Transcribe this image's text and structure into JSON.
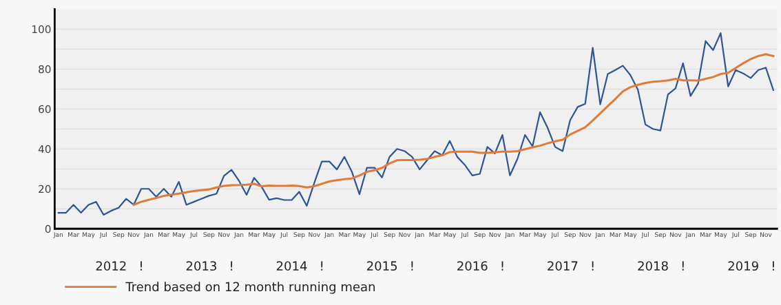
{
  "chart_data": {
    "type": "line",
    "categories": [
      "Jan",
      null,
      "Mar",
      null,
      "May",
      null,
      "Jul",
      null,
      "Sep",
      null,
      "Nov",
      null,
      "Jan",
      null,
      "Mar",
      null,
      "May",
      null,
      "Jul",
      null,
      "Sep",
      null,
      "Nov",
      null,
      "Jan",
      null,
      "Mar",
      null,
      "May",
      null,
      "Jul",
      null,
      "Sep",
      null,
      "Nov",
      null,
      "Jan",
      null,
      "Mar",
      null,
      "May",
      null,
      "Jul",
      null,
      "Sep",
      null,
      "Nov",
      null,
      "Jan",
      null,
      "Mar",
      null,
      "May",
      null,
      "Jul",
      null,
      "Sep",
      null,
      "Nov",
      null,
      "Jan",
      null,
      "Mar",
      null,
      "May",
      null,
      "Jul",
      null,
      "Sep",
      null,
      "Nov",
      null,
      "Jan",
      null,
      "Mar",
      null,
      "May",
      null,
      "Jul",
      null,
      "Sep",
      null,
      "Nov",
      null,
      "Jan",
      null,
      "Mar",
      null,
      "May",
      null,
      "Jul",
      null,
      "Sep",
      null,
      "Nov",
      null
    ],
    "series": [
      {
        "color": "#2f5597",
        "values": [
          8,
          8,
          12,
          8,
          12,
          13.5,
          7,
          9,
          10.5,
          15,
          12,
          20,
          20,
          16,
          20,
          16,
          23.5,
          12,
          13.5,
          15,
          16.5,
          17.5,
          26.5,
          29.5,
          24,
          17,
          25.5,
          21,
          14.5,
          15.3,
          14.4,
          14.4,
          18.5,
          11.5,
          23,
          33.7,
          33.7,
          29.7,
          36,
          28.5,
          17.3,
          30.6,
          30.6,
          25.7,
          36,
          40,
          38.9,
          36,
          29.7,
          34.4,
          38.9,
          36.8,
          44,
          36,
          32,
          26.7,
          27.5,
          41,
          37.7,
          47,
          26.7,
          35,
          47,
          41.3,
          58.4,
          50.6,
          41,
          38.9,
          54.4,
          61,
          62.6,
          90.7,
          62.3,
          77.5,
          79.5,
          81.7,
          77,
          69.7,
          52.2,
          50,
          49.2,
          67.3,
          70.3,
          82.9,
          66.5,
          72.7,
          94,
          89.5,
          98,
          71.3,
          79.5,
          77.8,
          75.5,
          79.5,
          80.7,
          69.5
        ]
      },
      {
        "name": "Trend based on 12 month running mean",
        "color": "#e07b39",
        "values": [
          null,
          null,
          null,
          null,
          null,
          null,
          null,
          null,
          null,
          null,
          12,
          13.5,
          14.5,
          15.4,
          16.5,
          17.1,
          17.6,
          18.3,
          18.9,
          19.3,
          19.7,
          20.7,
          21.5,
          21.8,
          21.9,
          22.1,
          22.5,
          21.3,
          21.6,
          21.5,
          21.5,
          21.6,
          21.4,
          20.7,
          21.3,
          22.5,
          23.7,
          24.3,
          24.8,
          25.2,
          26.7,
          28.5,
          29.3,
          30.5,
          32.7,
          34.3,
          34.4,
          34.4,
          34.6,
          35,
          36,
          36.8,
          38.4,
          38.6,
          38.6,
          38.6,
          38,
          38,
          38.3,
          38.6,
          38.6,
          38.9,
          39.8,
          40.8,
          41.6,
          42.8,
          43.8,
          44.6,
          47.2,
          49,
          50.8,
          54.2,
          57.8,
          61.4,
          65,
          68.8,
          70.9,
          72.1,
          73,
          73.6,
          73.9,
          74.3,
          75.1,
          74.3,
          74.3,
          74.2,
          75.1,
          76,
          77.5,
          78.1,
          80.5,
          82.9,
          85,
          86.5,
          87.4,
          86.5
        ]
      }
    ],
    "ylim": [
      0,
      110
    ],
    "yticks": [
      0,
      {
        "value": 10,
        "label": null
      },
      20,
      {
        "value": 30,
        "label": null
      },
      40,
      {
        "value": 50,
        "label": null
      },
      60,
      {
        "value": 70,
        "label": null
      },
      80,
      {
        "value": 90,
        "label": null
      },
      100
    ],
    "grid": "y",
    "legend": "bottom left",
    "marker": "none",
    "line_style": "solid",
    "annotations": [
      "2012",
      "!",
      "2013",
      "!",
      "2014",
      "!",
      "2015",
      "!",
      "2016",
      "!",
      "2017",
      "!",
      "2018",
      "!",
      "2019",
      "!"
    ]
  }
}
